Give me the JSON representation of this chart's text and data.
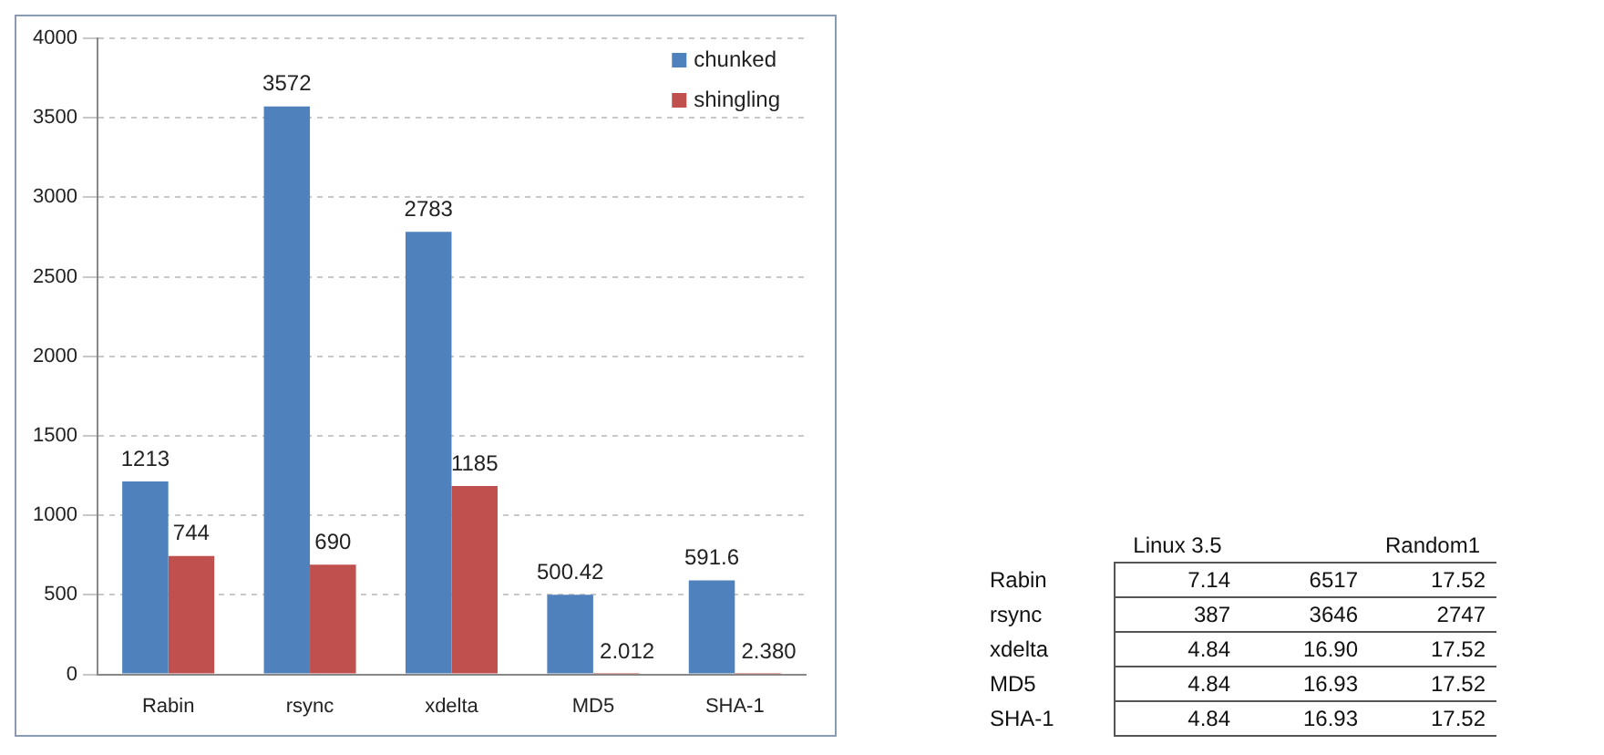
{
  "chart_data": [
    {
      "type": "bar",
      "categories": [
        "Rabin",
        "rsync",
        "xdelta",
        "MD5",
        "SHA-1"
      ],
      "series": [
        {
          "name": "chunked",
          "color": "#4f81bd",
          "values": [
            1213,
            3572,
            2783,
            500.42,
            591.6
          ],
          "value_labels": [
            "1213",
            "3572",
            "2783",
            "500.42",
            "591.6"
          ]
        },
        {
          "name": "shingling",
          "color": "#c0504d",
          "values": [
            744,
            690,
            1185,
            2.012,
            2.38
          ],
          "value_labels": [
            "744",
            "690",
            "1185",
            "2.012",
            "2.380"
          ]
        }
      ],
      "ylim": [
        0,
        4000
      ],
      "yticks": [
        0,
        500,
        1000,
        1500,
        2000,
        2500,
        3000,
        3500,
        4000
      ],
      "grid": "y",
      "legend": "top right"
    },
    {
      "type": "heatmap",
      "categories": [
        "Linux 3.5",
        null,
        "Random1"
      ],
      "y_categories": [
        "Rabin",
        "rsync",
        "xdelta",
        "MD5",
        "SHA-1"
      ],
      "cells": [
        [
          7.14,
          6517,
          17.52
        ],
        [
          387,
          3646,
          2747
        ],
        [
          4.84,
          16.9,
          17.52
        ],
        [
          4.84,
          16.93,
          17.52
        ],
        [
          4.84,
          16.93,
          17.52
        ]
      ],
      "cell_labels": [
        [
          "7.14",
          "6517",
          "17.52"
        ],
        [
          "387",
          "3646",
          "2747"
        ],
        [
          "4.84",
          "16.90",
          "17.52"
        ],
        [
          "4.84",
          "16.93",
          "17.52"
        ],
        [
          "4.84",
          "16.93",
          "17.52"
        ]
      ]
    }
  ]
}
